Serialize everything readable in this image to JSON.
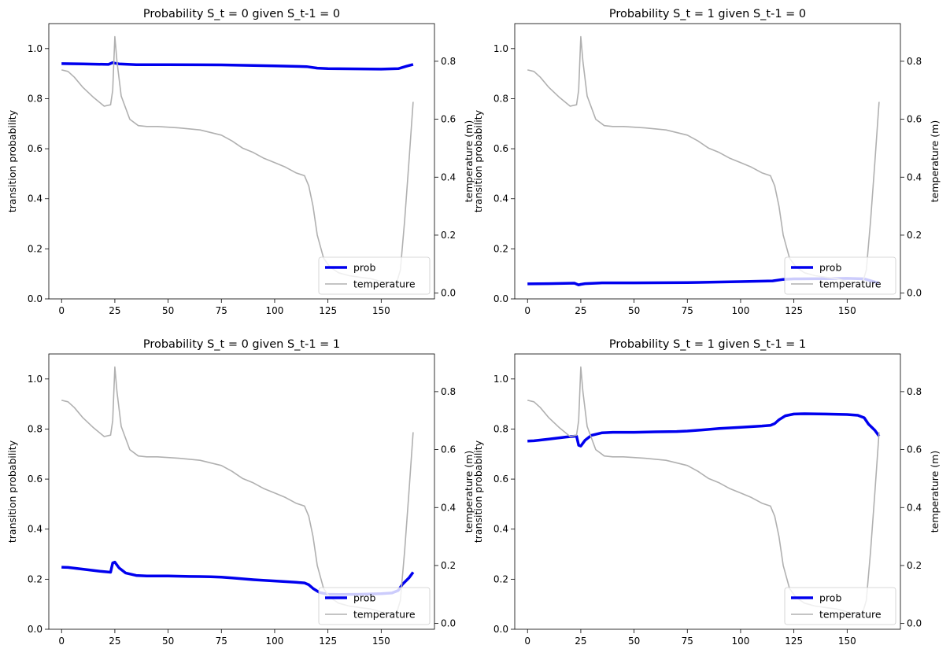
{
  "chart_data": [
    {
      "type": "line",
      "title": "Probability S_t = 0 given S_t-1 = 0",
      "xlabel": "",
      "ylabel": "transition probability",
      "y2label": "temperature (m)",
      "xlim": [
        -6,
        175
      ],
      "ylim": [
        0,
        1.1
      ],
      "y2lim": [
        -0.02,
        0.93
      ],
      "xticks": [
        0,
        25,
        50,
        75,
        100,
        125,
        150
      ],
      "yticks": [
        0.0,
        0.2,
        0.4,
        0.6,
        0.8,
        1.0
      ],
      "y2ticks": [
        0.0,
        0.2,
        0.4,
        0.6,
        0.8
      ],
      "legend": {
        "position": "lower-right",
        "entries": [
          "prob",
          "temperature"
        ]
      },
      "series": [
        {
          "name": "prob",
          "axis": "left",
          "color": "#0000ee",
          "x": [
            0,
            10,
            22,
            24,
            25,
            27,
            35,
            50,
            75,
            100,
            115,
            120,
            125,
            140,
            150,
            158,
            162,
            165
          ],
          "y": [
            0.94,
            0.939,
            0.937,
            0.944,
            0.942,
            0.939,
            0.936,
            0.936,
            0.935,
            0.931,
            0.928,
            0.922,
            0.92,
            0.919,
            0.918,
            0.92,
            0.93,
            0.937
          ]
        },
        {
          "name": "temperature",
          "axis": "right",
          "color": "#b0b0b0",
          "x": [
            0,
            3,
            6,
            10,
            15,
            20,
            23,
            24,
            25,
            26,
            28,
            32,
            36,
            40,
            45,
            55,
            65,
            75,
            80,
            85,
            90,
            95,
            100,
            105,
            110,
            114,
            116,
            118,
            120,
            123,
            126,
            130,
            135,
            140,
            145,
            150,
            154,
            157,
            159,
            161,
            163,
            165
          ],
          "y": [
            0.77,
            0.765,
            0.745,
            0.71,
            0.675,
            0.645,
            0.65,
            0.7,
            0.885,
            0.8,
            0.68,
            0.6,
            0.578,
            0.575,
            0.575,
            0.57,
            0.563,
            0.545,
            0.525,
            0.5,
            0.485,
            0.465,
            0.45,
            0.435,
            0.415,
            0.405,
            0.37,
            0.3,
            0.2,
            0.12,
            0.09,
            0.07,
            0.06,
            0.055,
            0.05,
            0.04,
            0.035,
            0.03,
            0.08,
            0.25,
            0.45,
            0.66
          ]
        }
      ]
    },
    {
      "type": "line",
      "title": "Probability S_t = 1 given S_t-1 = 0",
      "xlabel": "",
      "ylabel": "transition probability",
      "y2label": "temperature (m)",
      "xlim": [
        -6,
        175
      ],
      "ylim": [
        0,
        1.1
      ],
      "y2lim": [
        -0.02,
        0.93
      ],
      "xticks": [
        0,
        25,
        50,
        75,
        100,
        125,
        150
      ],
      "yticks": [
        0.0,
        0.2,
        0.4,
        0.6,
        0.8,
        1.0
      ],
      "y2ticks": [
        0.0,
        0.2,
        0.4,
        0.6,
        0.8
      ],
      "legend": {
        "position": "lower-right",
        "entries": [
          "prob",
          "temperature"
        ]
      },
      "series": [
        {
          "name": "prob",
          "axis": "left",
          "color": "#0000ee",
          "x": [
            0,
            10,
            22,
            24,
            25,
            27,
            35,
            50,
            75,
            100,
            115,
            120,
            125,
            140,
            150,
            158,
            162,
            165
          ],
          "y": [
            0.06,
            0.061,
            0.063,
            0.056,
            0.058,
            0.061,
            0.064,
            0.064,
            0.065,
            0.069,
            0.072,
            0.078,
            0.08,
            0.081,
            0.082,
            0.08,
            0.07,
            0.063
          ]
        },
        {
          "name": "temperature",
          "axis": "right",
          "color": "#b0b0b0",
          "x": [
            0,
            3,
            6,
            10,
            15,
            20,
            23,
            24,
            25,
            26,
            28,
            32,
            36,
            40,
            45,
            55,
            65,
            75,
            80,
            85,
            90,
            95,
            100,
            105,
            110,
            114,
            116,
            118,
            120,
            123,
            126,
            130,
            135,
            140,
            145,
            150,
            154,
            157,
            159,
            161,
            163,
            165
          ],
          "y": [
            0.77,
            0.765,
            0.745,
            0.71,
            0.675,
            0.645,
            0.65,
            0.7,
            0.885,
            0.8,
            0.68,
            0.6,
            0.578,
            0.575,
            0.575,
            0.57,
            0.563,
            0.545,
            0.525,
            0.5,
            0.485,
            0.465,
            0.45,
            0.435,
            0.415,
            0.405,
            0.37,
            0.3,
            0.2,
            0.12,
            0.09,
            0.07,
            0.06,
            0.055,
            0.05,
            0.04,
            0.035,
            0.03,
            0.08,
            0.25,
            0.45,
            0.66
          ]
        }
      ]
    },
    {
      "type": "line",
      "title": "Probability S_t = 0 given S_t-1 = 1",
      "xlabel": "",
      "ylabel": "transition probability",
      "y2label": "temperature (m)",
      "xlim": [
        -6,
        175
      ],
      "ylim": [
        0,
        1.1
      ],
      "y2lim": [
        -0.02,
        0.93
      ],
      "xticks": [
        0,
        25,
        50,
        75,
        100,
        125,
        150
      ],
      "yticks": [
        0.0,
        0.2,
        0.4,
        0.6,
        0.8,
        1.0
      ],
      "y2ticks": [
        0.0,
        0.2,
        0.4,
        0.6,
        0.8
      ],
      "legend": {
        "position": "lower-right",
        "entries": [
          "prob",
          "temperature"
        ]
      },
      "series": [
        {
          "name": "prob",
          "axis": "left",
          "color": "#0000ee",
          "x": [
            0,
            3,
            10,
            18,
            23,
            24,
            25,
            27,
            30,
            35,
            40,
            50,
            60,
            70,
            75,
            80,
            90,
            100,
            110,
            114,
            116,
            118,
            121,
            125,
            130,
            140,
            150,
            155,
            158,
            160,
            163,
            165
          ],
          "y": [
            0.248,
            0.247,
            0.24,
            0.232,
            0.228,
            0.265,
            0.268,
            0.245,
            0.225,
            0.215,
            0.213,
            0.213,
            0.211,
            0.21,
            0.208,
            0.205,
            0.198,
            0.193,
            0.188,
            0.185,
            0.178,
            0.163,
            0.147,
            0.14,
            0.139,
            0.14,
            0.142,
            0.145,
            0.155,
            0.18,
            0.205,
            0.228
          ]
        },
        {
          "name": "temperature",
          "axis": "right",
          "color": "#b0b0b0",
          "x": [
            0,
            3,
            6,
            10,
            15,
            20,
            23,
            24,
            25,
            26,
            28,
            32,
            36,
            40,
            45,
            55,
            65,
            75,
            80,
            85,
            90,
            95,
            100,
            105,
            110,
            114,
            116,
            118,
            120,
            123,
            126,
            130,
            135,
            140,
            145,
            150,
            154,
            157,
            159,
            161,
            163,
            165
          ],
          "y": [
            0.77,
            0.765,
            0.745,
            0.71,
            0.675,
            0.645,
            0.65,
            0.7,
            0.885,
            0.8,
            0.68,
            0.6,
            0.578,
            0.575,
            0.575,
            0.57,
            0.563,
            0.545,
            0.525,
            0.5,
            0.485,
            0.465,
            0.45,
            0.435,
            0.415,
            0.405,
            0.37,
            0.3,
            0.2,
            0.12,
            0.09,
            0.07,
            0.06,
            0.055,
            0.05,
            0.04,
            0.035,
            0.03,
            0.08,
            0.25,
            0.45,
            0.66
          ]
        }
      ]
    },
    {
      "type": "line",
      "title": "Probability S_t = 1 given S_t-1 = 1",
      "xlabel": "",
      "ylabel": "transition probability",
      "y2label": "temperature (m)",
      "xlim": [
        -6,
        175
      ],
      "ylim": [
        0,
        1.1
      ],
      "y2lim": [
        -0.02,
        0.93
      ],
      "xticks": [
        0,
        25,
        50,
        75,
        100,
        125,
        150
      ],
      "yticks": [
        0.0,
        0.2,
        0.4,
        0.6,
        0.8,
        1.0
      ],
      "y2ticks": [
        0.0,
        0.2,
        0.4,
        0.6,
        0.8
      ],
      "legend": {
        "position": "lower-right",
        "entries": [
          "prob",
          "temperature"
        ]
      },
      "series": [
        {
          "name": "prob",
          "axis": "left",
          "color": "#0000ee",
          "x": [
            0,
            3,
            10,
            18,
            23,
            24,
            25,
            27,
            30,
            35,
            40,
            50,
            60,
            70,
            75,
            80,
            90,
            100,
            110,
            114,
            116,
            118,
            121,
            125,
            130,
            140,
            150,
            155,
            158,
            160,
            163,
            165
          ],
          "y": [
            0.752,
            0.753,
            0.76,
            0.768,
            0.772,
            0.735,
            0.732,
            0.755,
            0.775,
            0.785,
            0.787,
            0.787,
            0.789,
            0.79,
            0.792,
            0.795,
            0.802,
            0.807,
            0.812,
            0.815,
            0.822,
            0.837,
            0.853,
            0.86,
            0.861,
            0.86,
            0.858,
            0.855,
            0.845,
            0.82,
            0.795,
            0.772
          ]
        },
        {
          "name": "temperature",
          "axis": "right",
          "color": "#b0b0b0",
          "x": [
            0,
            3,
            6,
            10,
            15,
            20,
            23,
            24,
            25,
            26,
            28,
            32,
            36,
            40,
            45,
            55,
            65,
            75,
            80,
            85,
            90,
            95,
            100,
            105,
            110,
            114,
            116,
            118,
            120,
            123,
            126,
            130,
            135,
            140,
            145,
            150,
            154,
            157,
            159,
            161,
            163,
            165
          ],
          "y": [
            0.77,
            0.765,
            0.745,
            0.71,
            0.675,
            0.645,
            0.65,
            0.7,
            0.885,
            0.8,
            0.68,
            0.6,
            0.578,
            0.575,
            0.575,
            0.57,
            0.563,
            0.545,
            0.525,
            0.5,
            0.485,
            0.465,
            0.45,
            0.435,
            0.415,
            0.405,
            0.37,
            0.3,
            0.2,
            0.12,
            0.09,
            0.07,
            0.06,
            0.055,
            0.05,
            0.04,
            0.035,
            0.03,
            0.08,
            0.25,
            0.45,
            0.66
          ]
        }
      ]
    }
  ]
}
